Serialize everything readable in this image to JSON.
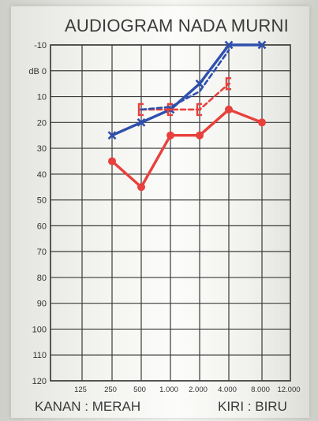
{
  "title": "AUDIOGRAM NADA MURNI",
  "legend": {
    "right_ear": "KANAN : MERAH",
    "left_ear": "KIRI : BIRU"
  },
  "colors": {
    "right": "#e8403c",
    "left": "#2f4fae",
    "grid": "#3a3a3a"
  },
  "chart_data": {
    "type": "line",
    "title": "AUDIOGRAM NADA MURNI",
    "x_ticks": [
      "125",
      "250",
      "500",
      "1.000",
      "2.000",
      "4.000",
      "8.000",
      "12.000"
    ],
    "y_ticks": [
      "-10",
      "dB 0",
      "10",
      "20",
      "30",
      "40",
      "50",
      "60",
      "70",
      "80",
      "90",
      "100",
      "110",
      "120"
    ],
    "y_values": [
      -10,
      0,
      10,
      20,
      30,
      40,
      50,
      60,
      70,
      80,
      90,
      100,
      110,
      120
    ],
    "ylim": [
      120,
      -10
    ],
    "grid": true,
    "series": [
      {
        "name": "KANAN : MERAH",
        "kind": "air",
        "color": "#e8403c",
        "marker": "circle",
        "x": [
          "250",
          "500",
          "1.000",
          "2.000",
          "4.000",
          "8.000"
        ],
        "values": [
          35,
          45,
          25,
          25,
          15,
          20
        ]
      },
      {
        "name": "KIRI : BIRU",
        "kind": "air",
        "color": "#2f4fae",
        "marker": "x",
        "x": [
          "250",
          "500",
          "1.000",
          "2.000",
          "4.000",
          "8.000"
        ],
        "values": [
          25,
          20,
          15,
          5,
          -10,
          -10
        ]
      },
      {
        "kind": "bone",
        "color": "#e8403c",
        "marker": "bracket",
        "x": [
          "500",
          "1.000",
          "2.000",
          "4.000"
        ],
        "values": [
          15,
          15,
          15,
          5
        ]
      },
      {
        "kind": "bone",
        "color": "#2f4fae",
        "marker": "none",
        "x": [
          "500",
          "1.000",
          "2.000",
          "4.000"
        ],
        "values": [
          15,
          14,
          8,
          -8
        ]
      }
    ]
  }
}
